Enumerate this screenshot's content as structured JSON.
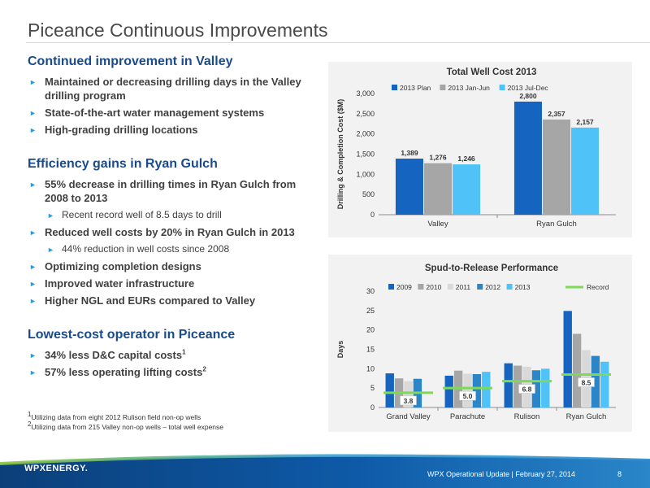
{
  "slide": {
    "title": "Piceance Continuous Improvements"
  },
  "sections": [
    {
      "heading": "Continued improvement in Valley",
      "bullets": [
        {
          "text": "Maintained or decreasing drilling days in the Valley drilling program",
          "level": 1
        },
        {
          "text": "State-of-the-art water management systems",
          "level": 1
        },
        {
          "text": "High-grading drilling locations",
          "level": 1
        }
      ]
    },
    {
      "heading": "Efficiency gains in Ryan Gulch",
      "bullets": [
        {
          "text": "55% decrease in drilling times in Ryan Gulch from 2008 to 2013",
          "level": 1
        },
        {
          "text": "Recent record well of 8.5 days to drill",
          "level": 2
        },
        {
          "text": "Reduced well costs by 20% in Ryan Gulch in 2013",
          "level": 1
        },
        {
          "text": "44% reduction in well costs since 2008",
          "level": 2
        },
        {
          "text": "Optimizing completion designs",
          "level": 1
        },
        {
          "text": "Improved water infrastructure",
          "level": 1
        },
        {
          "text": "Higher NGL and EURs compared to Valley",
          "level": 1
        }
      ]
    },
    {
      "heading": "Lowest-cost operator in Piceance",
      "bullets": [
        {
          "text": "34% less D&C capital costs",
          "sup": "1",
          "level": 1
        },
        {
          "text": "57% less operating lifting costs",
          "sup": "2",
          "level": 1
        }
      ]
    }
  ],
  "footnotes": [
    {
      "mark": "1",
      "text": "Utilizing data from eight 2012 Rulison field non-op wells"
    },
    {
      "mark": "2",
      "text": "Utilizing data from 215 Valley non-op wells – total well expense"
    }
  ],
  "footer": {
    "logo": "WPXENERGY.",
    "text": "WPX Operational Update  |  February 27, 2014",
    "page": "8"
  },
  "colors": {
    "heading_blue": "#1a4b8c",
    "bullet_arrow": "#2e9ad6",
    "footer_dark": "#0b3f7a",
    "footer_mid": "#2a86c8",
    "footer_light": "#8cc63f",
    "record_line": "#7ed957"
  },
  "chart_data": [
    {
      "type": "bar",
      "title": "Total Well Cost 2013",
      "xlabel": "",
      "ylabel": "Drilling & Completion Cost ($M)",
      "categories": [
        "Valley",
        "Ryan Gulch"
      ],
      "ylim": [
        0,
        3000
      ],
      "yticks": [
        "0",
        "500",
        "1,000",
        "1,500",
        "2,000",
        "2,500",
        "3,000"
      ],
      "ytick_values": [
        0,
        500,
        1000,
        1500,
        2000,
        2500,
        3000
      ],
      "legend_position": "top",
      "grid": false,
      "series": [
        {
          "name": "2013 Plan",
          "color": "#1565c0",
          "values": [
            1389,
            2800
          ],
          "labels": [
            "1,389",
            "2,800"
          ]
        },
        {
          "name": "2013 Jan-Jun",
          "color": "#a6a6a6",
          "values": [
            1276,
            2357
          ],
          "labels": [
            "1,276",
            "2,357"
          ]
        },
        {
          "name": "2013 Jul-Dec",
          "color": "#4fc3f7",
          "values": [
            1246,
            2157
          ],
          "labels": [
            "1,246",
            "2,157"
          ]
        }
      ]
    },
    {
      "type": "bar",
      "title": "Spud-to-Release Performance",
      "xlabel": "",
      "ylabel": "Days",
      "categories": [
        "Grand Valley",
        "Parachute",
        "Rulison",
        "Ryan Gulch"
      ],
      "ylim": [
        0,
        30
      ],
      "yticks": [
        "0",
        "5",
        "10",
        "15",
        "20",
        "25",
        "30"
      ],
      "ytick_values": [
        0,
        5,
        10,
        15,
        20,
        25,
        30
      ],
      "legend_position": "top",
      "grid": false,
      "series": [
        {
          "name": "2009",
          "color": "#1565c0",
          "values": [
            8.8,
            8.2,
            11.4,
            24.9
          ]
        },
        {
          "name": "2010",
          "color": "#a6a6a6",
          "values": [
            7.5,
            9.5,
            10.8,
            19.0
          ]
        },
        {
          "name": "2011",
          "color": "#d9d9d9",
          "values": [
            6.8,
            8.7,
            10.5,
            14.8
          ]
        },
        {
          "name": "2012",
          "color": "#2a86c8",
          "values": [
            7.4,
            8.6,
            9.6,
            13.3
          ]
        },
        {
          "name": "2013",
          "color": "#4fc3f7",
          "values": [
            null,
            9.2,
            10.0,
            11.8
          ]
        }
      ],
      "record": {
        "name": "Record",
        "color": "#7ed957",
        "values": [
          3.8,
          5.0,
          6.8,
          8.5
        ],
        "labels": [
          "3.8",
          "5.0",
          "6.8",
          "8.5"
        ]
      }
    }
  ]
}
